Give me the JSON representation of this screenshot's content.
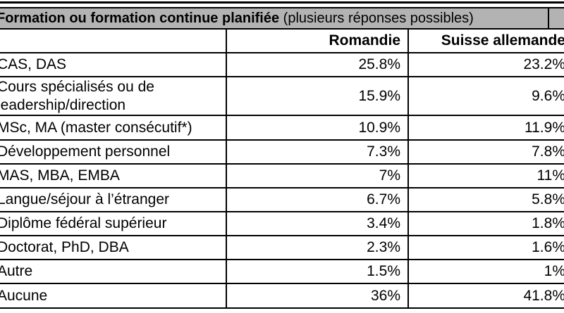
{
  "title_bar": {
    "main": "Formation ou formation continue planifiée",
    "note": " (plusieurs réponses possibles)"
  },
  "columns": {
    "label": "",
    "romandie": "Romandie",
    "suisse_allemande": "Suisse allemande"
  },
  "rows": [
    {
      "label": "CAS, DAS",
      "romandie": "25.8%",
      "suisse": "23.2%"
    },
    {
      "label": "Cours spécialisés ou de\nleadership/direction",
      "romandie": "15.9%",
      "suisse": "9.6%"
    },
    {
      "label": "MSc, MA (master consécutif*)",
      "romandie": "10.9%",
      "suisse": "11.9%"
    },
    {
      "label": "Développement personnel",
      "romandie": "7.3%",
      "suisse": "7.8%"
    },
    {
      "label": "MAS, MBA, EMBA",
      "romandie": "7%",
      "suisse": "11%"
    },
    {
      "label": "Langue/séjour à l’étranger",
      "romandie": "6.7%",
      "suisse": "5.8%"
    },
    {
      "label": "Diplôme fédéral supérieur",
      "romandie": "3.4%",
      "suisse": "1.8%"
    },
    {
      "label": "Doctorat, PhD, DBA",
      "romandie": "2.3%",
      "suisse": "1.6%"
    },
    {
      "label": "Autre",
      "romandie": "1.5%",
      "suisse": "1%"
    },
    {
      "label": "Aucune",
      "romandie": "36%",
      "suisse": "41.8%"
    }
  ],
  "colors": {
    "title_bg": "#b3b3b3",
    "border": "#000000",
    "text": "#000000",
    "background": "#ffffff"
  }
}
